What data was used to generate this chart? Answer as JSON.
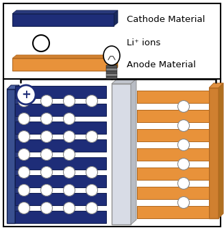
{
  "cathode_color": "#1e2d78",
  "cathode_color_mid": "#2a3f9e",
  "cathode_color_dark": "#111d4e",
  "anode_color": "#e8923a",
  "anode_color_light": "#f0a860",
  "anode_color_dark": "#b06820",
  "separator_color": "#d8dce6",
  "separator_dark": "#b0b4c0",
  "bg_color": "#ffffff",
  "legend_cathode_label": "Cathode Material",
  "legend_ion_label": "Li⁺ ions",
  "legend_anode_label": "Anode Material",
  "wire_color": "#000000",
  "border_color": "#000000"
}
